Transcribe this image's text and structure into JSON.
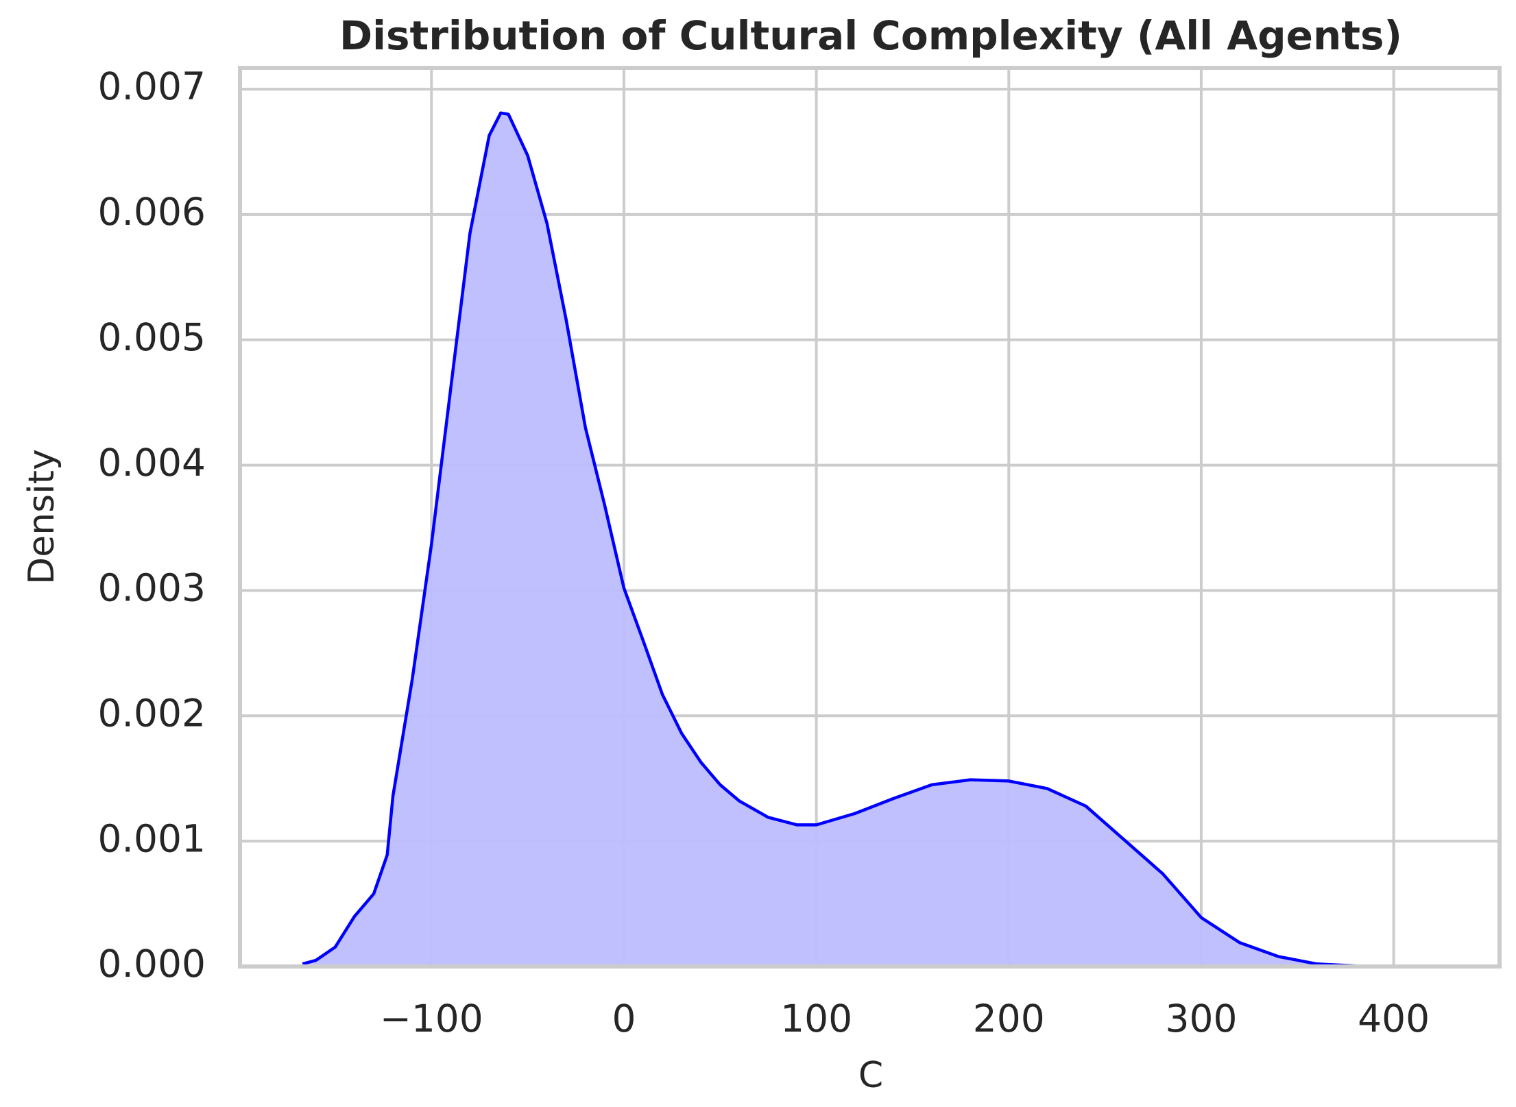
{
  "chart_data": {
    "type": "kde",
    "title": "Distribution of Cultural Complexity (All Agents)",
    "x_label": "C",
    "y_label": "Density",
    "color": "#0000ff",
    "fill_color": "#bdbdff",
    "grid": true,
    "x": [
      -167,
      -160,
      -150,
      -140,
      -130,
      -123,
      -120,
      -110,
      -100,
      -90,
      -80,
      -70,
      -64,
      -60,
      -50,
      -40,
      -30,
      -20,
      -10,
      0,
      10,
      20,
      30,
      40,
      50,
      60,
      75,
      90,
      100,
      120,
      140,
      160,
      180,
      200,
      220,
      240,
      260,
      280,
      300,
      320,
      340,
      360,
      380
    ],
    "values": [
      2e-05,
      5e-05,
      0.000155,
      0.0004,
      0.00058,
      0.00089,
      0.00136,
      0.00229,
      0.00337,
      0.00461,
      0.00585,
      0.00663,
      0.00681,
      0.0068,
      0.00647,
      0.00593,
      0.00516,
      0.0043,
      0.00368,
      0.00302,
      0.0026,
      0.00217,
      0.00186,
      0.00163,
      0.00145,
      0.00132,
      0.00119,
      0.00113,
      0.00113,
      0.00122,
      0.00134,
      0.00145,
      0.00149,
      0.00148,
      0.00142,
      0.00128,
      0.00101,
      0.00074,
      0.00039,
      0.00019,
      8e-05,
      2e-05,
      5e-06
    ],
    "xlim": [
      -199.5,
      455
    ],
    "ylim": [
      0,
      0.00717
    ],
    "xticks": [
      {
        "value": -100,
        "label": "−100"
      },
      0,
      100,
      200,
      300,
      400
    ],
    "yticks": [
      {
        "value": 0,
        "label": "0.000"
      },
      0.001,
      0.002,
      0.003,
      0.004,
      0.005,
      0.006,
      0.007
    ]
  }
}
